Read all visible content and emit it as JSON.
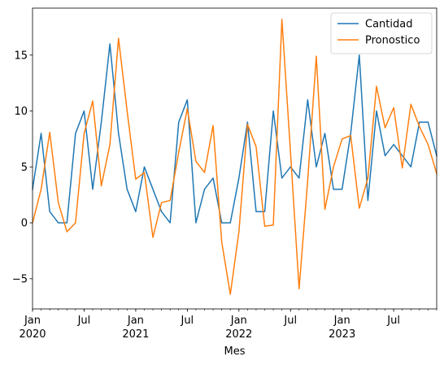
{
  "chart_data": {
    "type": "line",
    "xlabel": "Mes",
    "ylabel": "",
    "title": "",
    "ylim": [
      -7.7,
      19.2
    ],
    "grid": false,
    "legend_position": "top-right",
    "x": [
      "2020-01",
      "2020-02",
      "2020-03",
      "2020-04",
      "2020-05",
      "2020-06",
      "2020-07",
      "2020-08",
      "2020-09",
      "2020-10",
      "2020-11",
      "2020-12",
      "2021-01",
      "2021-02",
      "2021-03",
      "2021-04",
      "2021-05",
      "2021-06",
      "2021-07",
      "2021-08",
      "2021-09",
      "2021-10",
      "2021-11",
      "2021-12",
      "2022-01",
      "2022-02",
      "2022-03",
      "2022-04",
      "2022-05",
      "2022-06",
      "2022-07",
      "2022-08",
      "2022-09",
      "2022-10",
      "2022-11",
      "2022-12",
      "2023-01",
      "2023-02",
      "2023-03",
      "2023-04",
      "2023-05",
      "2023-06",
      "2023-07",
      "2023-08",
      "2023-09",
      "2023-10",
      "2023-11",
      "2023-12"
    ],
    "y_ticks": [
      -5,
      0,
      5,
      10,
      15
    ],
    "x_major_ticks": [
      {
        "month": "2020-01",
        "line1": "Jan",
        "line2": "2020"
      },
      {
        "month": "2020-07",
        "line1": "Jul",
        "line2": ""
      },
      {
        "month": "2021-01",
        "line1": "Jan",
        "line2": "2021"
      },
      {
        "month": "2021-07",
        "line1": "Jul",
        "line2": ""
      },
      {
        "month": "2022-01",
        "line1": "Jan",
        "line2": "2022"
      },
      {
        "month": "2022-07",
        "line1": "Jul",
        "line2": ""
      },
      {
        "month": "2023-01",
        "line1": "Jan",
        "line2": "2023"
      },
      {
        "month": "2023-07",
        "line1": "Jul",
        "line2": ""
      }
    ],
    "series": [
      {
        "name": "Cantidad",
        "color": "#1f77b4",
        "values": [
          3,
          8,
          1,
          0,
          0,
          8,
          10,
          3,
          9,
          16,
          8,
          3,
          1,
          5,
          3,
          1,
          0,
          9,
          11,
          0,
          3,
          4,
          0,
          0,
          4,
          9,
          1,
          1,
          10,
          4,
          5,
          4,
          11,
          5,
          8,
          3,
          3,
          8,
          15,
          2,
          10,
          6,
          7,
          6,
          5,
          9,
          9,
          6
        ]
      },
      {
        "name": "Pronostico",
        "color": "#ff7f0e",
        "values": [
          0,
          3,
          8.1,
          1.8,
          -0.8,
          0,
          8,
          10.9,
          3.3,
          7,
          16.5,
          10,
          3.9,
          4.5,
          -1.3,
          1.8,
          2,
          6.3,
          10.2,
          5.5,
          4.5,
          8.7,
          -1.7,
          -6.4,
          -0.8,
          8.8,
          6.8,
          -0.3,
          -0.2,
          18.2,
          6.3,
          -5.9,
          3.8,
          14.9,
          1.2,
          5,
          7.5,
          7.8,
          1.3,
          4,
          12.2,
          8.5,
          10.3,
          4.9,
          10.6,
          8.6,
          7,
          4.4
        ]
      }
    ]
  }
}
